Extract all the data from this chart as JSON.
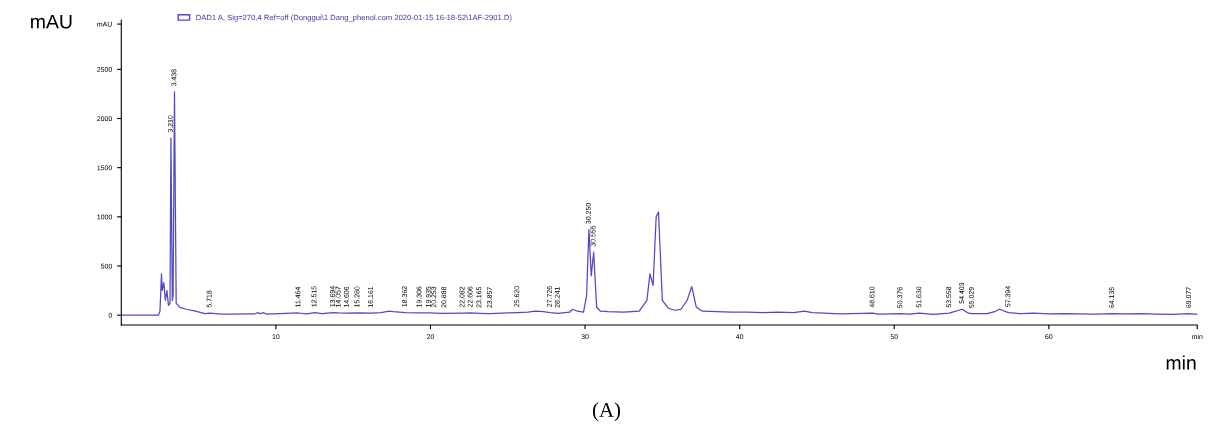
{
  "chart_data": {
    "type": "line",
    "xlabel": "min",
    "ylabel": "mAU",
    "xlim": [
      0,
      69.6
    ],
    "ylim": [
      -100,
      3000
    ],
    "xticks": [
      10,
      20,
      30,
      40,
      50,
      60,
      {
        "value": 69.6,
        "label": "min"
      }
    ],
    "yticks": [
      0,
      500,
      1000,
      1500,
      2000,
      2500,
      {
        "value": 2960,
        "label": "mAU"
      }
    ],
    "grid": false,
    "legend": "top left",
    "marker": "none",
    "line_style": "solid",
    "series": [
      {
        "name": "DAD1 A, Sig=270,4 Ref=off (Donggui\\1 Dang_phenol.com 2020-01-15 16-18-52\\1AF-2901.D)",
        "color": "#5048c8",
        "x": [
          0,
          2.4,
          2.5,
          2.6,
          2.65,
          2.75,
          2.85,
          2.95,
          3.05,
          3.15,
          3.21,
          3.3,
          3.35,
          3.44,
          3.55,
          3.8,
          4.2,
          4.8,
          5.4,
          5.72,
          6.5,
          8.6,
          8.8,
          9.0,
          9.2,
          9.4,
          11.46,
          12.0,
          12.5,
          13.0,
          13.7,
          14.06,
          14.6,
          15.28,
          16.16,
          16.8,
          17.33,
          17.6,
          18.36,
          19.3,
          19.9,
          20.25,
          20.9,
          22.08,
          22.6,
          23.17,
          23.86,
          25.0,
          25.62,
          26.3,
          26.8,
          27.3,
          27.73,
          28.24,
          29.0,
          29.2,
          29.5,
          29.9,
          30.1,
          30.25,
          30.4,
          30.555,
          30.75,
          31.0,
          31.5,
          32.5,
          33.0,
          33.5,
          34.0,
          34.2,
          34.4,
          34.6,
          34.75,
          35.0,
          35.4,
          35.8,
          36.2,
          36.6,
          36.9,
          37.2,
          37.6,
          38.5,
          39.5,
          40.5,
          41.5,
          42.5,
          43.5,
          44.2,
          44.7,
          45.5,
          46.5,
          48.6,
          49.0,
          50.4,
          51.0,
          51.63,
          52.5,
          53.56,
          54.4,
          54.8,
          55.03,
          56.0,
          56.5,
          56.8,
          57.39,
          58.2,
          59.0,
          60.0,
          61.0,
          62.0,
          63.0,
          64.1,
          65.0,
          66.0,
          67.0,
          68.0,
          69.08,
          69.6
        ],
        "values": [
          0,
          0,
          40,
          420,
          250,
          330,
          150,
          250,
          100,
          120,
          1800,
          150,
          200,
          2270,
          120,
          80,
          60,
          40,
          15,
          20,
          10,
          12,
          25,
          15,
          25,
          10,
          22,
          12,
          25,
          15,
          25,
          22,
          20,
          22,
          20,
          25,
          40,
          35,
          25,
          22,
          22,
          20,
          18,
          20,
          22,
          18,
          15,
          22,
          25,
          30,
          40,
          35,
          25,
          18,
          30,
          60,
          40,
          30,
          200,
          870,
          400,
          640,
          80,
          40,
          35,
          30,
          35,
          40,
          150,
          420,
          300,
          1000,
          1050,
          150,
          70,
          50,
          60,
          150,
          290,
          80,
          40,
          35,
          30,
          30,
          25,
          30,
          25,
          40,
          25,
          20,
          12,
          20,
          10,
          15,
          10,
          20,
          8,
          20,
          60,
          20,
          15,
          15,
          35,
          60,
          25,
          15,
          20,
          12,
          15,
          12,
          10,
          15,
          12,
          15,
          10,
          8,
          15,
          8
        ]
      }
    ],
    "annotations": [
      {
        "text": "3.210",
        "x": 3.21,
        "y": 1800
      },
      {
        "text": "3.438",
        "x": 3.44,
        "y": 2270
      },
      {
        "text": "5.718",
        "x": 5.72,
        "y": 20
      },
      {
        "text": "11.464",
        "x": 11.46,
        "y": 22
      },
      {
        "text": "12.515",
        "x": 12.5,
        "y": 25
      },
      {
        "text": "13.694",
        "x": 13.7,
        "y": 25
      },
      {
        "text": "14.057",
        "x": 14.06,
        "y": 22
      },
      {
        "text": "14.606",
        "x": 14.6,
        "y": 20
      },
      {
        "text": "15.280",
        "x": 15.28,
        "y": 22
      },
      {
        "text": "16.161",
        "x": 16.16,
        "y": 20
      },
      {
        "text": "18.362",
        "x": 18.36,
        "y": 25
      },
      {
        "text": "19.306",
        "x": 19.3,
        "y": 22
      },
      {
        "text": "19.935",
        "x": 19.9,
        "y": 22
      },
      {
        "text": "20.253",
        "x": 20.25,
        "y": 20
      },
      {
        "text": "20.888",
        "x": 20.9,
        "y": 18
      },
      {
        "text": "22.082",
        "x": 22.08,
        "y": 20
      },
      {
        "text": "22.606",
        "x": 22.6,
        "y": 22
      },
      {
        "text": "23.165",
        "x": 23.17,
        "y": 18
      },
      {
        "text": "23.857",
        "x": 23.86,
        "y": 15
      },
      {
        "text": "25.620",
        "x": 25.62,
        "y": 25
      },
      {
        "text": "27.726",
        "x": 27.73,
        "y": 25
      },
      {
        "text": "28.241",
        "x": 28.24,
        "y": 18
      },
      {
        "text": "30.250",
        "x": 30.25,
        "y": 870
      },
      {
        "text": "30.555",
        "x": 30.555,
        "y": 640
      },
      {
        "text": "48.610",
        "x": 48.6,
        "y": 20
      },
      {
        "text": "50.376",
        "x": 50.4,
        "y": 15
      },
      {
        "text": "51.630",
        "x": 51.63,
        "y": 20
      },
      {
        "text": "53.558",
        "x": 53.56,
        "y": 20
      },
      {
        "text": "54.403",
        "x": 54.4,
        "y": 60
      },
      {
        "text": "55.029",
        "x": 55.03,
        "y": 15
      },
      {
        "text": "57.394",
        "x": 57.39,
        "y": 25
      },
      {
        "text": "64.135",
        "x": 64.1,
        "y": 15
      },
      {
        "text": "69.077",
        "x": 69.08,
        "y": 15
      },
      "(A)"
    ]
  }
}
